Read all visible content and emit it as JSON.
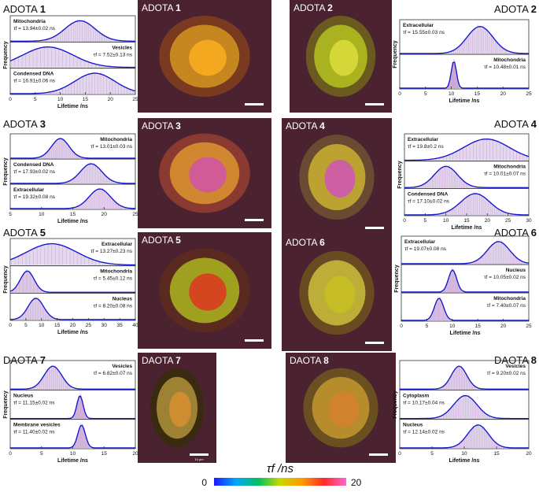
{
  "panels": [
    {
      "title": "ADOTA",
      "num": "1",
      "micro_title": "ADOTA",
      "micro_num": "1",
      "ylabel": "Frequency",
      "xlabel": "Lifetime /ns",
      "xticks": [
        0,
        5,
        10,
        15,
        20,
        25
      ],
      "series": [
        {
          "name": "Mitochondria",
          "value": "τf = 13.94±0.02 ns",
          "center": 13.94,
          "width": 3.0
        },
        {
          "name": "Vesicles",
          "value": "τf = 7.52±0.13 ns",
          "center": 7.52,
          "width": 5.0
        },
        {
          "name": "Condensed DNA",
          "value": "τf = 16.91±0.06 ns",
          "center": 16.91,
          "width": 4.0
        }
      ]
    },
    {
      "title": "ADOTA",
      "num": "2",
      "micro_title": "ADOTA",
      "micro_num": "2",
      "ylabel": "Frequency",
      "xlabel": "Lifetime /ns",
      "xticks": [
        0,
        5,
        10,
        15,
        20,
        25
      ],
      "series": [
        {
          "name": "Extracellular",
          "value": "τf = 15.55±0.03 ns",
          "center": 15.55,
          "width": 2.5
        },
        {
          "name": "Mitochondria",
          "value": "τf = 10.48±0.01 ns",
          "center": 10.48,
          "width": 0.5
        }
      ]
    },
    {
      "title": "ADOTA",
      "num": "3",
      "micro_title": "ADOTA",
      "micro_num": "3",
      "ylabel": "Frequency",
      "xlabel": "Lifetime /ns",
      "xticks": [
        5,
        10,
        15,
        20,
        25
      ],
      "series": [
        {
          "name": "Mitochondria",
          "value": "τf = 13.01±0.03 ns",
          "center": 13.01,
          "width": 1.4
        },
        {
          "name": "Condensed DNA",
          "value": "τf = 17.93±0.02 ns",
          "center": 17.93,
          "width": 1.7
        },
        {
          "name": "Extracellular",
          "value": "τf = 19.32±0.08 ns",
          "center": 19.32,
          "width": 1.7
        }
      ]
    },
    {
      "title": "ADOTA",
      "num": "4",
      "micro_title": "ADOTA",
      "micro_num": "4",
      "ylabel": "Frequency",
      "xlabel": "Lifetime /ns",
      "xticks": [
        0,
        5,
        10,
        15,
        20,
        25,
        30
      ],
      "series": [
        {
          "name": "Extracellular",
          "value": "τf = 19.8±0.2 ns",
          "center": 19.8,
          "width": 5.5
        },
        {
          "name": "Mitochondria",
          "value": "τf = 10.01±0.07 ns",
          "center": 10.01,
          "width": 2.8
        },
        {
          "name": "Condensed DNA",
          "value": "τf = 17.10±0.02 ns",
          "center": 17.1,
          "width": 3.5
        }
      ]
    },
    {
      "title": "ADOTA",
      "num": "5",
      "micro_title": "ADOTA",
      "micro_num": "5",
      "ylabel": "Frequency",
      "xlabel": "Lifetime /ns",
      "xticks": [
        0,
        5,
        10,
        15,
        20,
        25,
        30,
        35,
        40
      ],
      "series": [
        {
          "name": "Extracellular",
          "value": "τf = 13.27±0.23 ns",
          "center": 13.27,
          "width": 8.0
        },
        {
          "name": "Mitochondria",
          "value": "τf = 5.45±0.12 ns",
          "center": 5.45,
          "width": 2.2
        },
        {
          "name": "Nucleus",
          "value": "τf = 8.20±0.08 ns",
          "center": 8.2,
          "width": 2.5
        }
      ]
    },
    {
      "title": "ADOTA",
      "num": "6",
      "micro_title": "ADOTA",
      "micro_num": "6",
      "ylabel": "Frequency",
      "xlabel": "Lifetime /ns",
      "xticks": [
        0,
        5,
        10,
        15,
        20,
        25
      ],
      "series": [
        {
          "name": "Extracellular",
          "value": "τf = 19.07±0.08 ns",
          "center": 19.07,
          "width": 2.2
        },
        {
          "name": "Nucleus",
          "value": "τf = 10.05±0.02 ns",
          "center": 10.05,
          "width": 0.8
        },
        {
          "name": "Mitochondria",
          "value": "τf = 7.40±0.07 ns",
          "center": 7.4,
          "width": 0.9
        }
      ]
    },
    {
      "title": "DAOTA",
      "num": "7",
      "micro_title": "DAOTA",
      "micro_num": "7",
      "ylabel": "Frequency",
      "xlabel": "Lifetime /ns",
      "xticks": [
        0,
        5,
        10,
        15,
        20
      ],
      "scale_bar": "10 μm",
      "series": [
        {
          "name": "Vesicles",
          "value": "τf = 6.82±0.07 ns",
          "center": 6.82,
          "width": 1.4
        },
        {
          "name": "Nucleus",
          "value": "τf = 11.15±0.02 ns",
          "center": 11.15,
          "width": 0.5
        },
        {
          "name": "Membrane vesicles",
          "value": "τf = 11.40±0.02 ns",
          "center": 11.4,
          "width": 0.6
        }
      ]
    },
    {
      "title": "DAOTA",
      "num": "8",
      "micro_title": "DAOTA",
      "micro_num": "8",
      "ylabel": "Frequency",
      "xlabel": "Lifetime /ns",
      "xticks": [
        0,
        5,
        10,
        15,
        20
      ],
      "series": [
        {
          "name": "Vesicles",
          "value": "τf = 9.20±0.02 ns",
          "center": 9.2,
          "width": 1.2
        },
        {
          "name": "Cytoplasm",
          "value": "τf = 10.17±0.04 ns",
          "center": 10.17,
          "width": 1.8
        },
        {
          "name": "Nucleus",
          "value": "τf = 12.14±0.02 ns",
          "center": 12.14,
          "width": 1.6
        }
      ]
    }
  ],
  "colorbar": {
    "label": "τf /ns",
    "min": "0",
    "max": "20",
    "colors": [
      "#1a1aff",
      "#00a8ff",
      "#00c060",
      "#c8d800",
      "#ff9a00",
      "#ff2a2a",
      "#ff66cc"
    ]
  },
  "colors": {
    "curve": "#1a1acc",
    "fill": "#d8c8e8",
    "hist": "#c090c8"
  }
}
